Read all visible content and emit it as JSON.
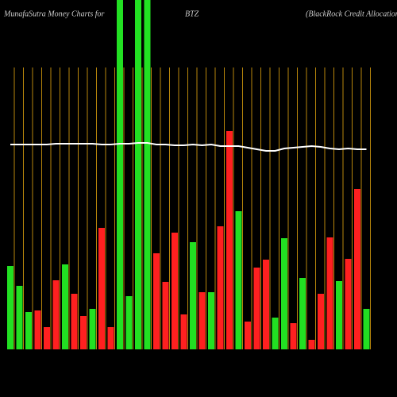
{
  "chart_data": {
    "type": "bar",
    "title": "MunafaSutra  Money  Charts for",
    "ticker": "BTZ",
    "subtitle": "(BlackRock Credit Allocation  Inc",
    "categories": [
      null,
      null,
      null,
      null,
      null,
      null,
      null,
      null,
      null,
      null,
      null,
      null,
      null,
      null,
      null,
      null,
      null,
      null,
      null,
      null,
      null,
      null,
      null,
      null,
      null,
      null,
      null,
      null,
      null,
      null,
      null,
      null,
      null,
      null,
      null,
      null,
      null,
      null,
      null,
      null
    ],
    "values": [
      105,
      80,
      47,
      49,
      28,
      87,
      107,
      70,
      42,
      51,
      153,
      28,
      450,
      67,
      450,
      450,
      121,
      85,
      147,
      44,
      135,
      72,
      72,
      155,
      275,
      174,
      35,
      103,
      113,
      40,
      140,
      33,
      90,
      12,
      70,
      141,
      86,
      114,
      202,
      51
    ],
    "colors": [
      "#22e022",
      "#22e022",
      "#22e022",
      "#ff2020",
      "#ff2020",
      "#ff2020",
      "#22e022",
      "#ff2020",
      "#ff2020",
      "#22e022",
      "#ff2020",
      "#ff2020",
      "#22e022",
      "#22e022",
      "#22e022",
      "#22e022",
      "#ff2020",
      "#ff2020",
      "#ff2020",
      "#ff2020",
      "#22e022",
      "#ff2020",
      "#22e022",
      "#ff2020",
      "#ff2020",
      "#22e022",
      "#ff2020",
      "#ff2020",
      "#ff2020",
      "#22e022",
      "#22e022",
      "#ff2020",
      "#22e022",
      "#ff2020",
      "#ff2020",
      "#ff2020",
      "#22e022",
      "#ff2020",
      "#ff2020",
      "#22e022"
    ],
    "line": {
      "color": "#ffffff",
      "values": [
        258,
        258,
        258,
        258,
        258,
        259,
        259,
        259,
        259,
        259,
        258,
        258,
        259,
        259,
        260,
        260,
        258,
        258,
        257,
        257,
        258,
        257,
        258,
        256,
        256,
        256,
        254,
        252,
        250,
        250,
        253,
        254,
        255,
        256,
        255,
        253,
        252,
        253,
        252,
        252
      ]
    },
    "ylim": [
      0,
      440
    ],
    "grid": true,
    "grid_color": "#b8860b"
  }
}
